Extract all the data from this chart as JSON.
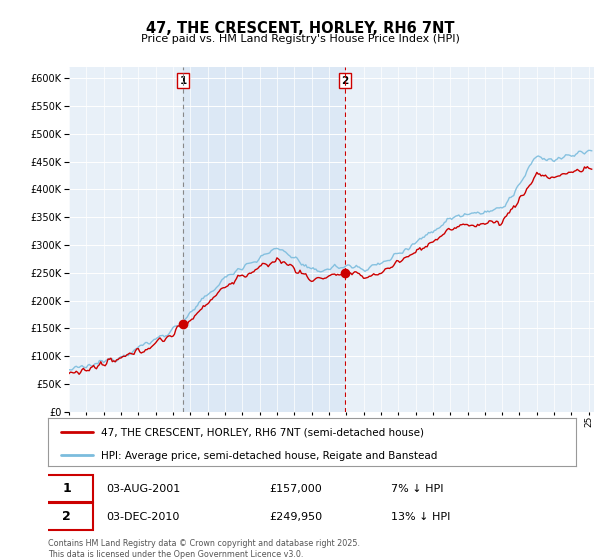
{
  "title": "47, THE CRESCENT, HORLEY, RH6 7NT",
  "subtitle": "Price paid vs. HM Land Registry's House Price Index (HPI)",
  "legend_line1": "47, THE CRESCENT, HORLEY, RH6 7NT (semi-detached house)",
  "legend_line2": "HPI: Average price, semi-detached house, Reigate and Banstead",
  "annotation1_label": "1",
  "annotation1_date": "03-AUG-2001",
  "annotation1_price": "£157,000",
  "annotation1_hpi": "7% ↓ HPI",
  "annotation2_label": "2",
  "annotation2_date": "03-DEC-2010",
  "annotation2_price": "£249,950",
  "annotation2_hpi": "13% ↓ HPI",
  "footer": "Contains HM Land Registry data © Crown copyright and database right 2025.\nThis data is licensed under the Open Government Licence v3.0.",
  "hpi_color": "#7bbcdd",
  "price_color": "#cc0000",
  "marker1_year": 2001.58,
  "marker2_year": 2010.92,
  "ylim_max": 620000,
  "ylim_min": 0,
  "xmin": 1995.0,
  "xmax": 2025.3,
  "background_color": "#ddeeff",
  "plot_bg": "#e8f0f8",
  "shade_color": "#dce8f5"
}
